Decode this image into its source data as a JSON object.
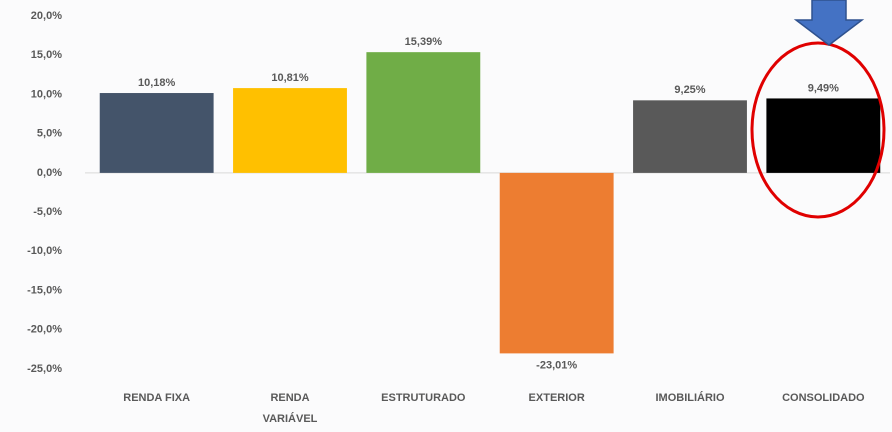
{
  "chart_data": {
    "type": "bar",
    "categories": [
      "RENDA FIXA",
      "RENDA\nVARIÁVEL",
      "ESTRUTURADO",
      "EXTERIOR",
      "IMOBILIÁRIO",
      "CONSOLIDADO"
    ],
    "values": [
      10.18,
      10.81,
      15.39,
      -23.01,
      9.25,
      9.49
    ],
    "value_labels": [
      "10,18%",
      "10,81%",
      "15,39%",
      "-23,01%",
      "9,25%",
      "9,49%"
    ],
    "colors": [
      "#44546a",
      "#ffc000",
      "#70ad47",
      "#ed7d31",
      "#595959",
      "#000000"
    ],
    "ylim": [
      -25,
      20
    ],
    "yticks": [
      {
        "value": -25,
        "label": "-25,0%"
      },
      {
        "value": -20,
        "label": "-20,0%"
      },
      {
        "value": -15,
        "label": "-15,0%"
      },
      {
        "value": -10,
        "label": "-10,0%"
      },
      {
        "value": -5,
        "label": "-5,0%"
      },
      {
        "value": 0,
        "label": "0,0%"
      },
      {
        "value": 5,
        "label": "5,0%"
      },
      {
        "value": 10,
        "label": "10,0%"
      },
      {
        "value": 15,
        "label": "15,0%"
      },
      {
        "value": 20,
        "label": "20,0%"
      }
    ],
    "grid": false
  }
}
